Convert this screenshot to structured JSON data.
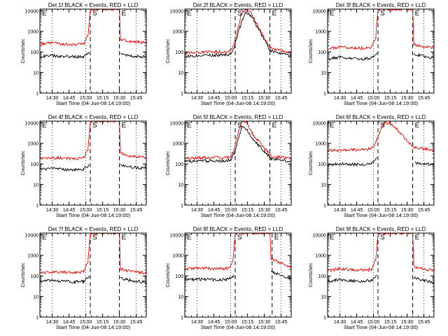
{
  "figure": {
    "ylabel": "Counts/sec",
    "xlabel": "Start Time (04-Jun-08 14:19:00)",
    "y_ticks": [
      "1",
      "10",
      "100",
      "1000",
      "10000"
    ],
    "x_ticks": [
      "14:30",
      "14:45",
      "15:00",
      "15:15",
      "15:30",
      "15:45"
    ],
    "colors": {
      "events": "#000000",
      "lld": "#ff0000",
      "axes": "#000000"
    }
  },
  "chart_data": [
    {
      "type": "line",
      "title": "Det 1f BLACK = Events, RED = LLD",
      "xlabel": "Start Time (04-Jun-08 14:19:00)",
      "ylabel": "Counts/sec",
      "ylim": [
        1,
        12000
      ],
      "yscale": "log",
      "xlim": [
        "14:19",
        "15:54"
      ],
      "x_ticks": [
        "14:30",
        "14:45",
        "15:00",
        "15:15",
        "15:30",
        "15:45"
      ],
      "interval_markers": [
        {
          "time": "14:19",
          "label": "E",
          "style": "dotted"
        },
        {
          "time": "15:04",
          "label": "S",
          "style": "dashed"
        },
        {
          "time": "15:30",
          "label": "E",
          "style": "dashed"
        }
      ],
      "series": [
        {
          "name": "Events",
          "color": "#000000",
          "x": [
            "14:19",
            "14:30",
            "14:40",
            "14:50",
            "14:58",
            "15:03",
            "15:04",
            "15:30",
            "15:31",
            "15:40",
            "15:54"
          ],
          "y": [
            60,
            65,
            60,
            58,
            60,
            90,
            null,
            null,
            80,
            65,
            55
          ]
        },
        {
          "name": "LLD",
          "color": "#ff0000",
          "x": [
            "14:19",
            "14:30",
            "14:40",
            "14:50",
            "14:58",
            "15:02",
            "15:04",
            "15:30",
            "15:31",
            "15:40",
            "15:54"
          ],
          "y": [
            250,
            270,
            240,
            220,
            250,
            600,
            12000,
            12000,
            400,
            320,
            270
          ]
        }
      ]
    },
    {
      "type": "line",
      "title": "Det 2f BLACK = Events, RED = LLD",
      "xlabel": "Start Time (04-Jun-08 14:19:00)",
      "ylabel": "Counts/sec",
      "ylim": [
        1,
        12000
      ],
      "yscale": "log",
      "xlim": [
        "14:19",
        "15:54"
      ],
      "x_ticks": [
        "14:30",
        "14:45",
        "15:00",
        "15:15",
        "15:30",
        "15:45"
      ],
      "interval_markers": [
        {
          "time": "14:19",
          "label": "E",
          "style": "dotted"
        },
        {
          "time": "15:04",
          "label": "S",
          "style": "dashed"
        },
        {
          "time": "15:35",
          "label": "E",
          "style": "dashed"
        }
      ],
      "series": [
        {
          "name": "Events",
          "color": "#000000",
          "x": [
            "14:19",
            "14:35",
            "14:55",
            "15:00",
            "15:03",
            "15:05",
            "15:08",
            "15:13",
            "15:18",
            "15:24",
            "15:30",
            "15:35",
            "15:54"
          ],
          "y": [
            60,
            70,
            70,
            80,
            150,
            400,
            1500,
            8000,
            6000,
            1500,
            400,
            120,
            60
          ]
        },
        {
          "name": "LLD",
          "color": "#ff0000",
          "x": [
            "14:19",
            "14:35",
            "14:55",
            "15:00",
            "15:03",
            "15:06",
            "15:09",
            "15:13",
            "15:18",
            "15:24",
            "15:30",
            "15:35",
            "15:54"
          ],
          "y": [
            90,
            100,
            100,
            120,
            250,
            1000,
            6000,
            12000,
            8000,
            2000,
            450,
            150,
            90
          ]
        }
      ]
    },
    {
      "type": "line",
      "title": "Det 3f BLACK = Events, RED = LLD",
      "xlabel": "Start Time (04-Jun-08 14:19:00)",
      "ylabel": "Counts/sec",
      "ylim": [
        1,
        12000
      ],
      "yscale": "log",
      "xlim": [
        "14:19",
        "15:54"
      ],
      "x_ticks": [
        "14:30",
        "14:45",
        "15:00",
        "15:15",
        "15:30",
        "15:45"
      ],
      "interval_markers": [
        {
          "time": "14:19",
          "label": "E",
          "style": "dotted"
        },
        {
          "time": "15:04",
          "label": "S",
          "style": "dashed"
        },
        {
          "time": "15:35",
          "label": "E",
          "style": "dashed"
        }
      ],
      "series": [
        {
          "name": "Events",
          "color": "#000000",
          "x": [
            "14:19",
            "14:30",
            "14:40",
            "14:50",
            "14:58",
            "15:03",
            "15:04",
            "15:35",
            "15:36",
            "15:45",
            "15:54"
          ],
          "y": [
            45,
            55,
            50,
            45,
            50,
            90,
            null,
            null,
            80,
            60,
            50
          ]
        },
        {
          "name": "LLD",
          "color": "#ff0000",
          "x": [
            "14:19",
            "14:30",
            "14:40",
            "14:50",
            "14:58",
            "15:02",
            "15:04",
            "15:35",
            "15:36",
            "15:45",
            "15:54"
          ],
          "y": [
            140,
            170,
            160,
            150,
            170,
            500,
            12000,
            12000,
            220,
            180,
            150
          ]
        }
      ]
    },
    {
      "type": "line",
      "title": "Det 4f BLACK = Events, RED = LLD",
      "xlabel": "Start Time (04-Jun-08 14:19:00)",
      "ylabel": "Counts/sec",
      "ylim": [
        1,
        12000
      ],
      "yscale": "log",
      "xlim": [
        "14:19",
        "15:54"
      ],
      "x_ticks": [
        "14:30",
        "14:45",
        "15:00",
        "15:15",
        "15:30",
        "15:45"
      ],
      "interval_markers": [
        {
          "time": "14:19",
          "label": "E",
          "style": "dotted"
        },
        {
          "time": "15:04",
          "label": "S",
          "style": "dashed"
        },
        {
          "time": "15:30",
          "label": "E",
          "style": "dashed"
        }
      ],
      "series": [
        {
          "name": "Events",
          "color": "#000000",
          "x": [
            "14:19",
            "14:30",
            "14:40",
            "14:50",
            "14:58",
            "15:03",
            "15:04",
            "15:30",
            "15:31",
            "15:40",
            "15:54"
          ],
          "y": [
            55,
            60,
            55,
            50,
            55,
            90,
            null,
            null,
            85,
            70,
            60
          ]
        },
        {
          "name": "LLD",
          "color": "#ff0000",
          "x": [
            "14:19",
            "14:30",
            "14:40",
            "14:50",
            "14:58",
            "15:02",
            "15:04",
            "15:30",
            "15:31",
            "15:40",
            "15:54"
          ],
          "y": [
            180,
            200,
            190,
            180,
            200,
            500,
            12000,
            12000,
            320,
            240,
            200
          ]
        }
      ]
    },
    {
      "type": "line",
      "title": "Det 5f BLACK = Events, RED = LLD",
      "xlabel": "Start Time (04-Jun-08 14:19:00)",
      "ylabel": "Counts/sec",
      "ylim": [
        1,
        12000
      ],
      "yscale": "log",
      "xlim": [
        "14:19",
        "15:54"
      ],
      "x_ticks": [
        "14:30",
        "14:45",
        "15:00",
        "15:15",
        "15:30",
        "15:45"
      ],
      "interval_markers": [
        {
          "time": "14:19",
          "label": "E",
          "style": "dotted"
        },
        {
          "time": "15:04",
          "label": "S",
          "style": "dashed"
        },
        {
          "time": "15:35",
          "label": "E",
          "style": "dashed"
        }
      ],
      "series": [
        {
          "name": "Events",
          "color": "#000000",
          "x": [
            "14:19",
            "14:35",
            "14:55",
            "15:00",
            "15:03",
            "15:06",
            "15:10",
            "15:14",
            "15:20",
            "15:24",
            "15:30",
            "15:36",
            "15:54"
          ],
          "y": [
            130,
            140,
            140,
            160,
            300,
            1200,
            6000,
            5000,
            1500,
            900,
            400,
            180,
            130
          ]
        },
        {
          "name": "LLD",
          "color": "#ff0000",
          "x": [
            "14:19",
            "14:35",
            "14:55",
            "15:00",
            "15:03",
            "15:06",
            "15:10",
            "15:14",
            "15:20",
            "15:24",
            "15:30",
            "15:36",
            "15:54"
          ],
          "y": [
            180,
            200,
            200,
            230,
            500,
            2500,
            12000,
            10000,
            2500,
            1500,
            600,
            250,
            180
          ]
        }
      ]
    },
    {
      "type": "line",
      "title": "Det 6f BLACK = Events, RED = LLD",
      "xlabel": "Start Time (04-Jun-08 14:19:00)",
      "ylabel": "Counts/sec",
      "ylim": [
        1,
        12000
      ],
      "yscale": "log",
      "xlim": [
        "14:19",
        "15:54"
      ],
      "x_ticks": [
        "14:30",
        "14:45",
        "15:00",
        "15:15",
        "15:30",
        "15:45"
      ],
      "interval_markers": [
        {
          "time": "14:19",
          "label": "E",
          "style": "dotted"
        },
        {
          "time": "15:04",
          "label": "S",
          "style": "dashed"
        },
        {
          "time": "15:35",
          "label": "E",
          "style": "dashed"
        }
      ],
      "series": [
        {
          "name": "Events",
          "color": "#000000",
          "x": [
            "14:19",
            "14:30",
            "14:40",
            "14:50",
            "14:58",
            "15:03",
            "15:04",
            "15:36",
            "15:37",
            "15:45",
            "15:54"
          ],
          "y": [
            90,
            100,
            95,
            90,
            100,
            200,
            null,
            null,
            110,
            100,
            95
          ]
        },
        {
          "name": "LLD",
          "color": "#ff0000",
          "x": [
            "14:19",
            "14:35",
            "14:55",
            "15:00",
            "15:03",
            "15:07",
            "15:10",
            "15:16",
            "15:22",
            "15:27",
            "15:32",
            "15:37",
            "15:54"
          ],
          "y": [
            450,
            460,
            500,
            700,
            1500,
            6000,
            10000,
            9000,
            4000,
            2000,
            1000,
            600,
            480
          ]
        }
      ]
    },
    {
      "type": "line",
      "title": "Det 7f BLACK = Events, RED = LLD",
      "xlabel": "Start Time (04-Jun-08 14:19:00)",
      "ylabel": "Counts/sec",
      "ylim": [
        1,
        12000
      ],
      "yscale": "log",
      "xlim": [
        "14:19",
        "15:54"
      ],
      "x_ticks": [
        "14:30",
        "14:45",
        "15:00",
        "15:15",
        "15:30",
        "15:45"
      ],
      "interval_markers": [
        {
          "time": "14:19",
          "label": "E",
          "style": "dotted"
        },
        {
          "time": "15:04",
          "label": "S",
          "style": "dashed"
        },
        {
          "time": "15:30",
          "label": "E",
          "style": "dashed"
        }
      ],
      "series": [
        {
          "name": "Events",
          "color": "#000000",
          "x": [
            "14:19",
            "14:30",
            "14:40",
            "14:50",
            "14:58",
            "15:03",
            "15:04",
            "15:30",
            "15:31",
            "15:40",
            "15:54"
          ],
          "y": [
            55,
            60,
            55,
            50,
            55,
            90,
            null,
            null,
            80,
            60,
            50
          ]
        },
        {
          "name": "LLD",
          "color": "#ff0000",
          "x": [
            "14:19",
            "14:30",
            "14:40",
            "14:50",
            "14:58",
            "15:02",
            "15:04",
            "15:30",
            "15:31",
            "15:40",
            "15:54"
          ],
          "y": [
            130,
            160,
            150,
            140,
            160,
            500,
            12000,
            12000,
            220,
            160,
            140
          ]
        }
      ]
    },
    {
      "type": "line",
      "title": "Det 8f BLACK = Events, RED = LLD",
      "xlabel": "Start Time (04-Jun-08 14:19:00)",
      "ylabel": "Counts/sec",
      "ylim": [
        1,
        12000
      ],
      "yscale": "log",
      "xlim": [
        "14:19",
        "15:54"
      ],
      "x_ticks": [
        "14:30",
        "14:45",
        "15:00",
        "15:15",
        "15:30",
        "15:45"
      ],
      "interval_markers": [
        {
          "time": "14:19",
          "label": "E",
          "style": "dotted"
        },
        {
          "time": "15:04",
          "label": "S",
          "style": "dashed"
        },
        {
          "time": "15:37",
          "label": "E",
          "style": "dashed"
        }
      ],
      "series": [
        {
          "name": "Events",
          "color": "#000000",
          "x": [
            "14:19",
            "14:30",
            "14:40",
            "14:50",
            "14:58",
            "15:03",
            "15:04",
            "15:35",
            "15:36",
            "15:45",
            "15:54"
          ],
          "y": [
            65,
            70,
            65,
            65,
            70,
            100,
            null,
            null,
            160,
            110,
            70
          ]
        },
        {
          "name": "LLD",
          "color": "#ff0000",
          "x": [
            "14:19",
            "14:30",
            "14:40",
            "14:50",
            "14:58",
            "15:02",
            "15:04",
            "15:35",
            "15:36",
            "15:45",
            "15:54"
          ],
          "y": [
            220,
            240,
            230,
            220,
            240,
            600,
            12000,
            12000,
            700,
            400,
            250
          ]
        }
      ]
    },
    {
      "type": "line",
      "title": "Det 9f BLACK = Events, RED = LLD",
      "xlabel": "Start Time (04-Jun-08 14:19:00)",
      "ylabel": "Counts/sec",
      "ylim": [
        1,
        12000
      ],
      "yscale": "log",
      "xlim": [
        "14:19",
        "15:54"
      ],
      "x_ticks": [
        "14:30",
        "14:45",
        "15:00",
        "15:15",
        "15:30",
        "15:45"
      ],
      "interval_markers": [
        {
          "time": "14:19",
          "label": "E",
          "style": "dotted"
        },
        {
          "time": "15:04",
          "label": "S",
          "style": "dashed"
        },
        {
          "time": "15:35",
          "label": "E",
          "style": "dashed"
        }
      ],
      "series": [
        {
          "name": "Events",
          "color": "#000000",
          "x": [
            "14:19",
            "14:30",
            "14:40",
            "14:50",
            "14:58",
            "15:03",
            "15:04",
            "15:35",
            "15:36",
            "15:45",
            "15:54"
          ],
          "y": [
            55,
            65,
            60,
            55,
            60,
            100,
            null,
            null,
            80,
            60,
            50
          ]
        },
        {
          "name": "LLD",
          "color": "#ff0000",
          "x": [
            "14:19",
            "14:30",
            "14:40",
            "14:50",
            "14:58",
            "15:02",
            "15:04",
            "15:35",
            "15:36",
            "15:45",
            "15:54"
          ],
          "y": [
            180,
            220,
            200,
            190,
            210,
            600,
            12000,
            12000,
            280,
            220,
            180
          ]
        }
      ]
    }
  ]
}
